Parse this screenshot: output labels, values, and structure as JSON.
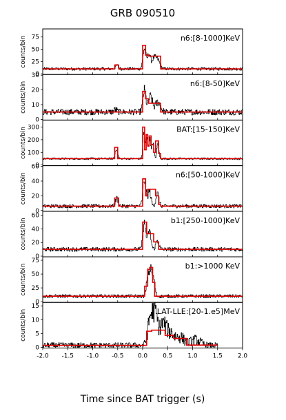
{
  "chart_data": {
    "type": "line",
    "title": "GRB 090510",
    "xlabel": "Time since BAT trigger (s)",
    "xlim": [
      -2.0,
      2.0
    ],
    "x_ticks": [
      "-2.0",
      "-1.5",
      "-1.0",
      "-0.5",
      "0.0",
      "0.5",
      "1.0",
      "1.5",
      "2.0"
    ],
    "panels": [
      {
        "label": "n6:[8-1000]KeV",
        "ylabel": "counts/bin",
        "ylim": [
          0,
          90
        ],
        "y_ticks": [
          0,
          25,
          50,
          75
        ],
        "background": 10,
        "x_start": -2.0,
        "x_end": 2.0,
        "peaks": [
          [
            -0.52,
            18,
            0.03
          ],
          [
            0.03,
            58,
            0.03
          ],
          [
            0.12,
            45,
            0.03
          ],
          [
            0.22,
            35,
            0.04
          ],
          [
            0.3,
            30,
            0.04
          ]
        ],
        "noise": 3,
        "blocks": [
          [
            -2.0,
            -0.56,
            10
          ],
          [
            -0.56,
            -0.48,
            18
          ],
          [
            -0.48,
            0.0,
            10
          ],
          [
            0.0,
            0.06,
            58
          ],
          [
            0.06,
            0.12,
            38
          ],
          [
            0.12,
            0.36,
            36
          ],
          [
            0.36,
            2.0,
            10
          ]
        ]
      },
      {
        "label": "n6:[8-50]KeV",
        "ylabel": "counts/bin",
        "ylim": [
          0,
          30
        ],
        "y_ticks": [
          0,
          10,
          20,
          30
        ],
        "background": 5,
        "x_start": -2.0,
        "x_end": 2.0,
        "peaks": [
          [
            -0.55,
            7,
            0.03
          ],
          [
            0.03,
            22,
            0.03
          ],
          [
            0.15,
            17,
            0.04
          ],
          [
            0.3,
            13,
            0.05
          ]
        ],
        "noise": 2,
        "blocks": [
          [
            -2.0,
            0.0,
            5
          ],
          [
            0.0,
            0.06,
            19
          ],
          [
            0.06,
            0.12,
            14
          ],
          [
            0.12,
            0.36,
            11
          ],
          [
            0.36,
            2.0,
            5
          ]
        ]
      },
      {
        "label": "BAT:[15-150]KeV",
        "ylabel": "counts/bin",
        "ylim": [
          0,
          350
        ],
        "y_ticks": [
          0,
          100,
          200,
          300
        ],
        "background": 50,
        "x_start": -2.0,
        "x_end": 2.0,
        "peaks": [
          [
            -0.53,
            140,
            0.025
          ],
          [
            0.02,
            300,
            0.02
          ],
          [
            0.08,
            240,
            0.02
          ],
          [
            0.14,
            230,
            0.02
          ],
          [
            0.2,
            200,
            0.02
          ],
          [
            0.3,
            190,
            0.02
          ]
        ],
        "noise": 8,
        "blocks": [
          [
            -2.0,
            -0.56,
            50
          ],
          [
            -0.56,
            -0.5,
            140
          ],
          [
            -0.5,
            0.0,
            50
          ],
          [
            0.0,
            0.04,
            300
          ],
          [
            0.04,
            0.07,
            120
          ],
          [
            0.07,
            0.1,
            240
          ],
          [
            0.1,
            0.13,
            150
          ],
          [
            0.13,
            0.17,
            230
          ],
          [
            0.17,
            0.22,
            160
          ],
          [
            0.22,
            0.26,
            100
          ],
          [
            0.26,
            0.32,
            190
          ],
          [
            0.32,
            0.36,
            90
          ],
          [
            0.36,
            2.0,
            50
          ]
        ]
      },
      {
        "label": "n6:[50-1000]KeV",
        "ylabel": "counts/bin",
        "ylim": [
          0,
          60
        ],
        "y_ticks": [
          0,
          20,
          40,
          60
        ],
        "background": 6,
        "x_start": -2.0,
        "x_end": 2.0,
        "peaks": [
          [
            -0.52,
            18,
            0.03
          ],
          [
            0.03,
            48,
            0.03
          ],
          [
            0.13,
            30,
            0.03
          ],
          [
            0.29,
            26,
            0.03
          ]
        ],
        "noise": 2.5,
        "blocks": [
          [
            -2.0,
            -0.56,
            6
          ],
          [
            -0.56,
            -0.48,
            17
          ],
          [
            -0.48,
            0.0,
            6
          ],
          [
            0.0,
            0.06,
            43
          ],
          [
            0.06,
            0.1,
            20
          ],
          [
            0.1,
            0.26,
            29
          ],
          [
            0.26,
            0.32,
            20
          ],
          [
            0.32,
            0.36,
            8
          ],
          [
            0.36,
            2.0,
            6
          ]
        ]
      },
      {
        "label": "b1:[250-1000]KeV",
        "ylabel": "counts/bin",
        "ylim": [
          0,
          65
        ],
        "y_ticks": [
          0,
          20,
          40,
          60
        ],
        "background": 10,
        "x_start": -2.0,
        "x_end": 2.0,
        "peaks": [
          [
            0.03,
            55,
            0.03
          ],
          [
            0.13,
            42,
            0.03
          ],
          [
            0.29,
            25,
            0.03
          ]
        ],
        "noise": 3,
        "blocks": [
          [
            -2.0,
            0.0,
            10
          ],
          [
            0.0,
            0.08,
            50
          ],
          [
            0.08,
            0.22,
            33
          ],
          [
            0.22,
            0.32,
            21
          ],
          [
            0.32,
            2.0,
            10
          ]
        ]
      },
      {
        "label": "b1:>1000 KeV",
        "ylabel": "counts/bin",
        "ylim": [
          0,
          80
        ],
        "y_ticks": [
          0,
          25,
          50,
          75
        ],
        "background": 10,
        "x_start": -2.0,
        "x_end": 2.0,
        "peaks": [
          [
            0.1,
            58,
            0.025
          ],
          [
            0.16,
            65,
            0.025
          ],
          [
            0.22,
            45,
            0.025
          ]
        ],
        "noise": 3,
        "blocks": [
          [
            -2.0,
            0.04,
            10
          ],
          [
            0.04,
            0.1,
            28
          ],
          [
            0.1,
            0.14,
            58
          ],
          [
            0.14,
            0.2,
            62
          ],
          [
            0.2,
            0.24,
            35
          ],
          [
            0.24,
            2.0,
            10
          ]
        ]
      },
      {
        "label": "LAT-LLE:[20-1.e5]MeV",
        "ylabel": "counts/bin",
        "ylim": [
          0,
          16
        ],
        "y_ticks": [
          0,
          5,
          10,
          15
        ],
        "background": 0.7,
        "x_start": -2.0,
        "x_end": 1.5,
        "peaks": [
          [
            0.15,
            12,
            0.05
          ],
          [
            0.25,
            13,
            0.05
          ],
          [
            0.4,
            9,
            0.06
          ],
          [
            0.55,
            6,
            0.08
          ],
          [
            0.75,
            4,
            0.08
          ],
          [
            1.05,
            3,
            0.1
          ]
        ],
        "noise": 1,
        "blocks": [
          [
            -2.0,
            0.08,
            0.7
          ],
          [
            0.08,
            0.18,
            5.8
          ],
          [
            0.18,
            0.45,
            6.2
          ],
          [
            0.45,
            0.62,
            4.3
          ],
          [
            0.62,
            0.88,
            3.2
          ],
          [
            0.88,
            1.5,
            0.8
          ]
        ]
      }
    ]
  }
}
